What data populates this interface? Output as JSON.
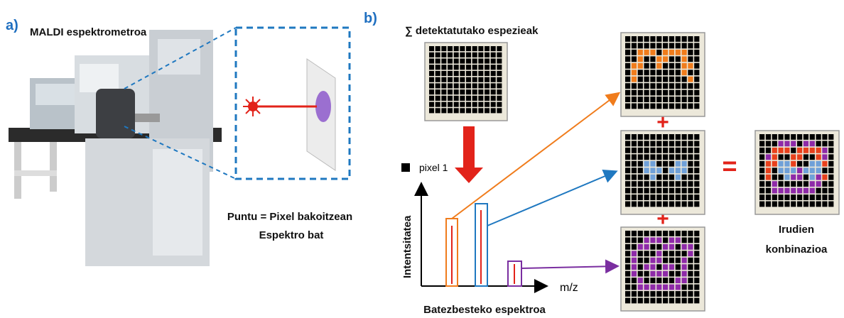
{
  "panel_a": {
    "label": "a)",
    "title": "MALDI espektrometroa",
    "caption": [
      "Puntu = Pixel bakoitzean",
      "Espektro bat"
    ]
  },
  "panel_b": {
    "label": "b)",
    "title": "∑ detektatutako espezieak",
    "legend": "pixel 1",
    "y_axis": "Intentsitatea",
    "x_axis": "m/z",
    "caption": "Batezbesteko espektroa",
    "plus_signs": [
      "+",
      "+"
    ],
    "equals": "=",
    "result_caption": [
      "Irudien",
      "konbinazioa"
    ]
  }
}
